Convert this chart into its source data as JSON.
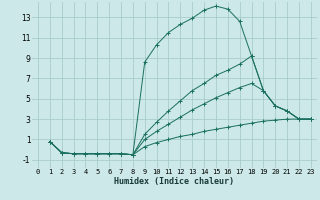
{
  "xlabel": "Humidex (Indice chaleur)",
  "bg_color": "#cce8e8",
  "grid_color": "#aacccc",
  "line_color": "#1a7060",
  "xlim": [
    -0.5,
    23.5
  ],
  "ylim": [
    -1.8,
    14.5
  ],
  "yticks": [
    -1,
    1,
    3,
    5,
    7,
    9,
    11,
    13
  ],
  "xticks": [
    0,
    1,
    2,
    3,
    4,
    5,
    6,
    7,
    8,
    9,
    10,
    11,
    12,
    13,
    14,
    15,
    16,
    17,
    18,
    19,
    20,
    21,
    22,
    23
  ],
  "series1_x": [
    1,
    2,
    3,
    4,
    5,
    6,
    7,
    8,
    9,
    10,
    11,
    12,
    13,
    14,
    15,
    16,
    17,
    18,
    19,
    20,
    21,
    22,
    23
  ],
  "series1_y": [
    0.8,
    -0.3,
    -0.4,
    -0.4,
    -0.4,
    -0.4,
    -0.4,
    -0.5,
    8.6,
    10.3,
    11.5,
    12.3,
    12.9,
    13.7,
    14.1,
    13.8,
    12.6,
    9.2,
    5.8,
    4.3,
    3.8,
    3.0,
    3.0
  ],
  "series2_x": [
    1,
    2,
    3,
    4,
    5,
    6,
    7,
    8,
    9,
    10,
    11,
    12,
    13,
    14,
    15,
    16,
    17,
    18,
    19,
    20,
    21,
    22,
    23
  ],
  "series2_y": [
    0.8,
    -0.3,
    -0.4,
    -0.4,
    -0.4,
    -0.4,
    -0.4,
    -0.5,
    1.5,
    2.7,
    3.8,
    4.8,
    5.8,
    6.5,
    7.3,
    7.8,
    8.4,
    9.2,
    5.8,
    4.3,
    3.8,
    3.0,
    3.0
  ],
  "series3_x": [
    1,
    2,
    3,
    4,
    5,
    6,
    7,
    8,
    9,
    10,
    11,
    12,
    13,
    14,
    15,
    16,
    17,
    18,
    19,
    20,
    21,
    22,
    23
  ],
  "series3_y": [
    0.8,
    -0.3,
    -0.4,
    -0.4,
    -0.4,
    -0.4,
    -0.4,
    -0.5,
    1.0,
    1.8,
    2.5,
    3.2,
    3.9,
    4.5,
    5.1,
    5.6,
    6.1,
    6.5,
    5.8,
    4.3,
    3.8,
    3.0,
    3.0
  ],
  "series4_x": [
    1,
    2,
    3,
    4,
    5,
    6,
    7,
    8,
    9,
    10,
    11,
    12,
    13,
    14,
    15,
    16,
    17,
    18,
    19,
    20,
    21,
    22,
    23
  ],
  "series4_y": [
    0.8,
    -0.3,
    -0.4,
    -0.4,
    -0.4,
    -0.4,
    -0.4,
    -0.5,
    0.3,
    0.7,
    1.0,
    1.3,
    1.5,
    1.8,
    2.0,
    2.2,
    2.4,
    2.6,
    2.8,
    2.9,
    3.0,
    3.0,
    3.0
  ]
}
